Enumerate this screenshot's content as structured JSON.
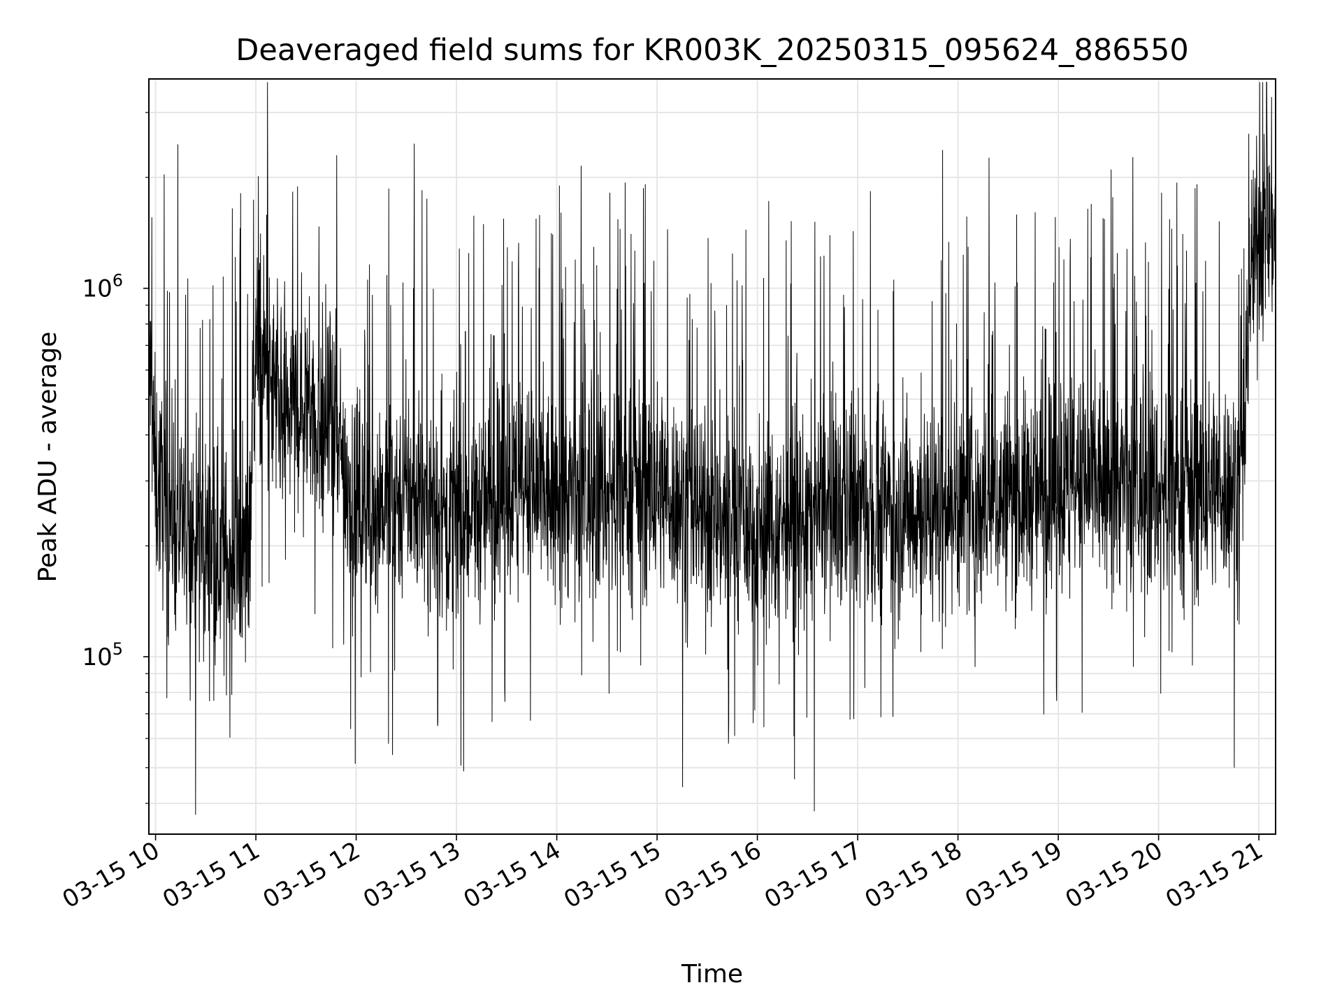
{
  "chart_data": {
    "type": "line",
    "title": "Deaveraged field sums for KR003K_20250315_095624_886550",
    "xlabel": "Time",
    "ylabel": "Peak ADU - average",
    "yscale": "log",
    "ylim": [
      33000,
      3700000
    ],
    "xlim": [
      "2025-03-15T09:56",
      "2025-03-15T21:10"
    ],
    "x_ticks": [
      {
        "time": "2025-03-15T10:00",
        "label": "03-15 10"
      },
      {
        "time": "2025-03-15T11:00",
        "label": "03-15 11"
      },
      {
        "time": "2025-03-15T12:00",
        "label": "03-15 12"
      },
      {
        "time": "2025-03-15T13:00",
        "label": "03-15 13"
      },
      {
        "time": "2025-03-15T14:00",
        "label": "03-15 14"
      },
      {
        "time": "2025-03-15T15:00",
        "label": "03-15 15"
      },
      {
        "time": "2025-03-15T16:00",
        "label": "03-15 16"
      },
      {
        "time": "2025-03-15T17:00",
        "label": "03-15 17"
      },
      {
        "time": "2025-03-15T18:00",
        "label": "03-15 18"
      },
      {
        "time": "2025-03-15T19:00",
        "label": "03-15 19"
      },
      {
        "time": "2025-03-15T20:00",
        "label": "03-15 20"
      },
      {
        "time": "2025-03-15T21:00",
        "label": "03-15 21"
      }
    ],
    "y_major_ticks": [
      {
        "value": 100000,
        "base": "10",
        "exp": "5"
      },
      {
        "value": 1000000,
        "base": "10",
        "exp": "6"
      }
    ],
    "grid": true,
    "line_color": "#000000",
    "grid_color": "#e6e6e6",
    "series": [
      {
        "x": [
          "2025-03-15T09:56",
          "2025-03-15T10:00",
          "2025-03-15T10:15",
          "2025-03-15T10:30",
          "2025-03-15T10:45",
          "2025-03-15T10:55",
          "2025-03-15T11:00",
          "2025-03-15T11:15",
          "2025-03-15T11:30",
          "2025-03-15T11:45",
          "2025-03-15T12:00",
          "2025-03-15T12:30",
          "2025-03-15T13:00",
          "2025-03-15T13:30",
          "2025-03-15T14:00",
          "2025-03-15T14:30",
          "2025-03-15T15:00",
          "2025-03-15T15:30",
          "2025-03-15T16:00",
          "2025-03-15T16:30",
          "2025-03-15T17:00",
          "2025-03-15T17:30",
          "2025-03-15T18:00",
          "2025-03-15T18:30",
          "2025-03-15T19:00",
          "2025-03-15T19:30",
          "2025-03-15T20:00",
          "2025-03-15T20:30",
          "2025-03-15T20:50",
          "2025-03-15T20:55",
          "2025-03-15T21:00",
          "2025-03-15T21:10"
        ],
        "y": [
          700000,
          300000,
          220000,
          200000,
          180000,
          180000,
          700000,
          450000,
          500000,
          400000,
          260000,
          280000,
          230000,
          280000,
          270000,
          280000,
          290000,
          240000,
          230000,
          240000,
          260000,
          250000,
          250000,
          270000,
          280000,
          300000,
          280000,
          290000,
          300000,
          1100000,
          1400000,
          1500000
        ]
      }
    ]
  }
}
